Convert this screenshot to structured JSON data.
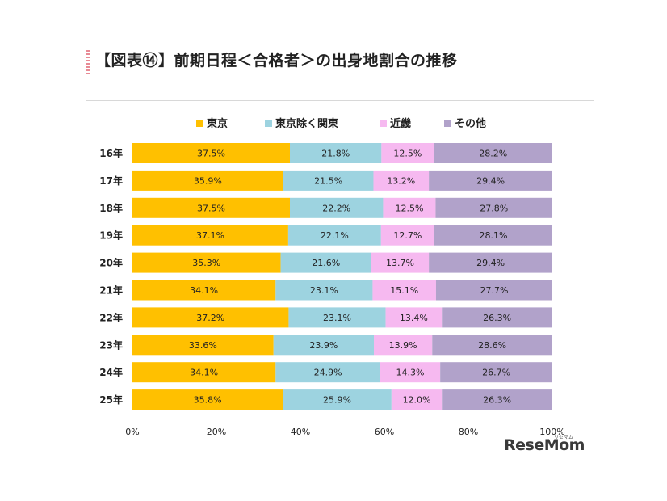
{
  "page": {
    "title": "【図表⑭】前期日程＜合格者＞の出身地割合の推移",
    "logo": "ReseMom",
    "logo_sub": "リセマム"
  },
  "chart_data": {
    "type": "bar",
    "orientation": "horizontal",
    "stacked": true,
    "percent": true,
    "title": "【図表⑭】前期日程＜合格者＞の出身地割合の推移",
    "xlabel": "",
    "ylabel": "",
    "xlim": [
      0,
      100
    ],
    "x_ticks": [
      "0%",
      "20%",
      "40%",
      "60%",
      "80%",
      "100%"
    ],
    "legend_position": "top",
    "grid": false,
    "categories": [
      "16年",
      "17年",
      "18年",
      "19年",
      "20年",
      "21年",
      "22年",
      "23年",
      "24年",
      "25年"
    ],
    "series": [
      {
        "name": "東京",
        "color": "#FFC000",
        "values": [
          37.5,
          35.9,
          37.5,
          37.1,
          35.3,
          34.1,
          37.2,
          33.6,
          34.1,
          35.8
        ],
        "labels": [
          "37.5%",
          "35.9%",
          "37.5%",
          "37.1%",
          "35.3%",
          "34.1%",
          "37.2%",
          "33.6%",
          "34.1%",
          "35.8%"
        ]
      },
      {
        "name": "東京除く関東",
        "color": "#9DD3E0",
        "values": [
          21.8,
          21.5,
          22.2,
          22.1,
          21.6,
          23.1,
          23.1,
          23.9,
          24.9,
          25.9
        ],
        "labels": [
          "21.8%",
          "21.5%",
          "22.2%",
          "22.1%",
          "21.6%",
          "23.1%",
          "23.1%",
          "23.9%",
          "24.9%",
          "25.9%"
        ]
      },
      {
        "name": "近畿",
        "color": "#F6B9F0",
        "values": [
          12.5,
          13.2,
          12.5,
          12.7,
          13.7,
          15.1,
          13.4,
          13.9,
          14.3,
          12.0
        ],
        "labels": [
          "12.5%",
          "13.2%",
          "12.5%",
          "12.7%",
          "13.7%",
          "15.1%",
          "13.4%",
          "13.9%",
          "14.3%",
          "12.0%"
        ]
      },
      {
        "name": "その他",
        "color": "#B1A2CA",
        "values": [
          28.2,
          29.4,
          27.8,
          28.1,
          29.4,
          27.7,
          26.3,
          28.6,
          26.7,
          26.3
        ],
        "labels": [
          "28.2%",
          "29.4%",
          "27.8%",
          "28.1%",
          "29.4%",
          "27.7%",
          "26.3%",
          "28.6%",
          "26.7%",
          "26.3%"
        ]
      }
    ]
  }
}
